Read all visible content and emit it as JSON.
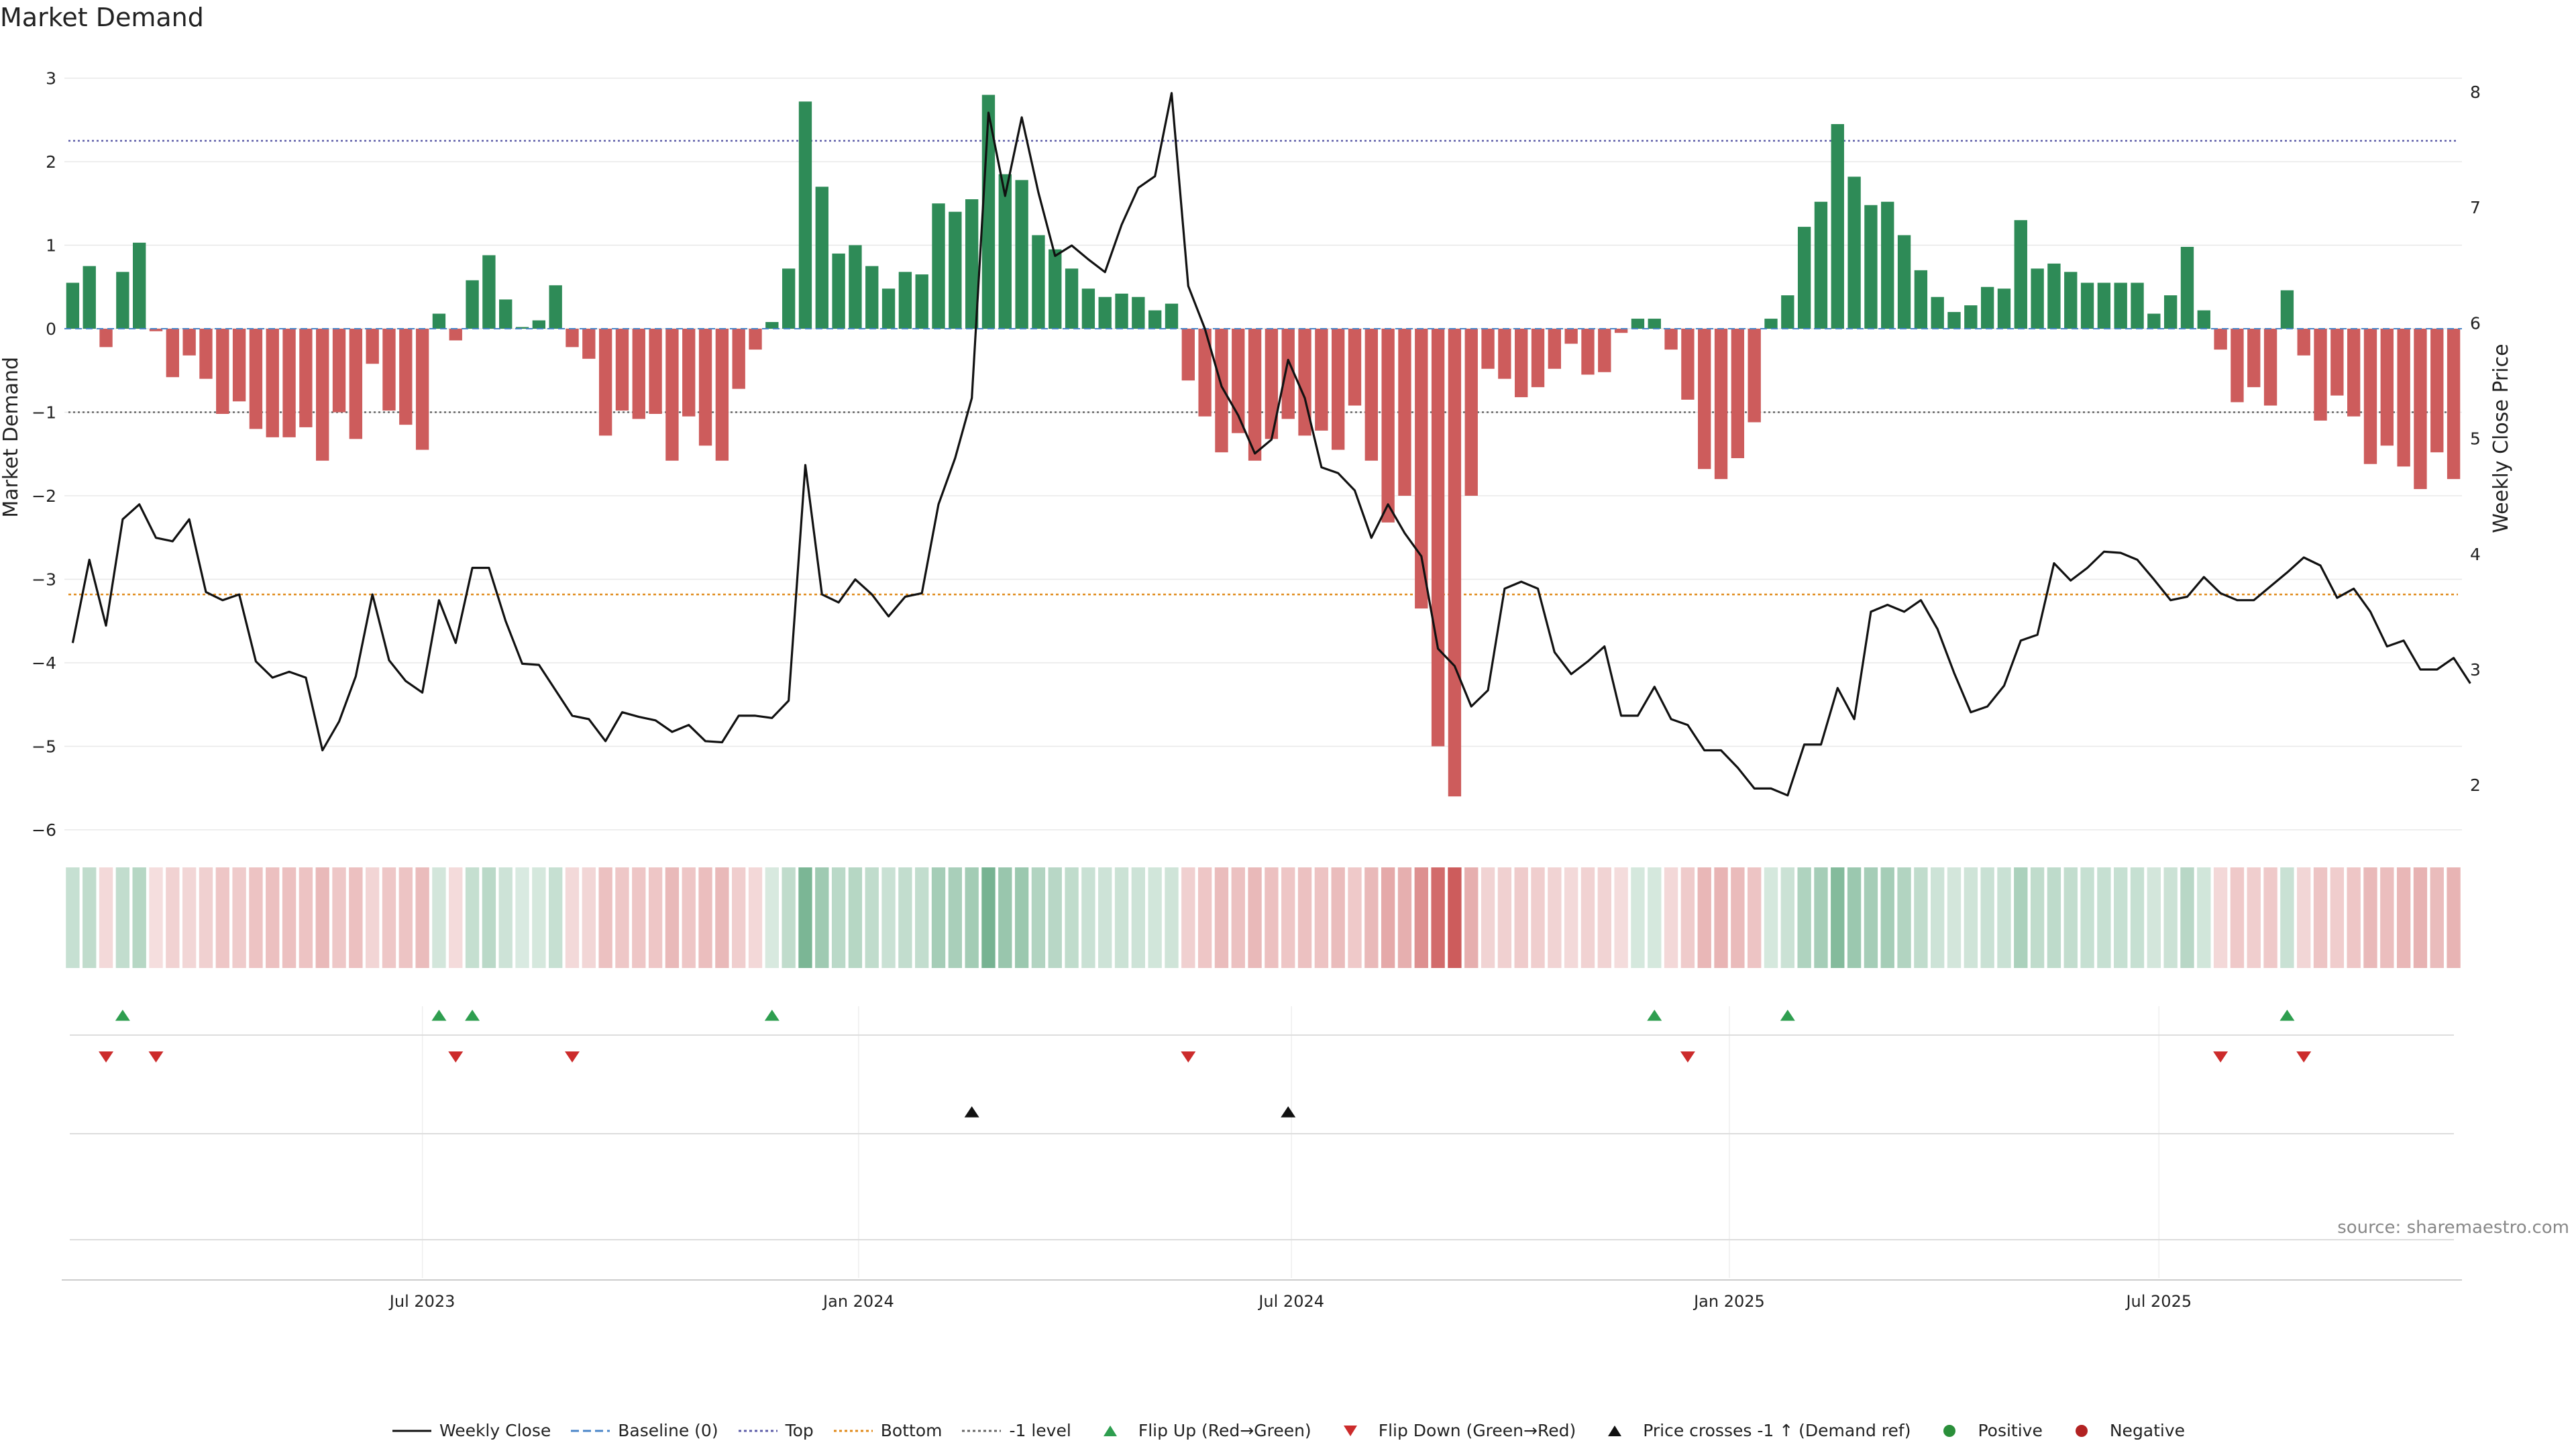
{
  "title": "Market Demand",
  "source": "source: sharemaestro.com",
  "chart_data": {
    "type": "bar",
    "title": "Market Demand",
    "ylabel": "Market Demand",
    "y2label": "Weekly Close Price",
    "ylim": [
      -6.5,
      3.0
    ],
    "y2lim": [
      1.5,
      8.1
    ],
    "yticks": [
      3,
      2,
      1,
      0,
      -1,
      -2,
      -3,
      -4,
      -5,
      -6
    ],
    "y2ticks": [
      8,
      7,
      6,
      5,
      4,
      3,
      2
    ],
    "yticks_text": [
      "3",
      "2",
      "1",
      "0",
      "−1",
      "−2",
      "−3",
      "−4",
      "−5",
      "−6"
    ],
    "xticks": [
      {
        "label": "Jul 2023",
        "week": 21.5
      },
      {
        "label": "Jan 2024",
        "week": 47.7
      },
      {
        "label": "Jul 2024",
        "week": 73.7
      },
      {
        "label": "Jan 2025",
        "week": 100.0
      },
      {
        "label": "Jul 2025",
        "week": 125.8
      }
    ],
    "reference_lines": [
      {
        "name": "Top",
        "axis": "left",
        "value": 2.25,
        "color": "#5c5ca8",
        "dash": "3,4"
      },
      {
        "name": "Bottom",
        "axis": "right",
        "value": 3.65,
        "color": "#e08a1a",
        "dash": "4,4"
      },
      {
        "name": "-1 level",
        "axis": "left",
        "value": -1.0,
        "color": "#666666",
        "dash": "3,4"
      }
    ],
    "series": [
      {
        "name": "Market Demand",
        "axis": "left",
        "values": [
          0.55,
          0.75,
          -0.22,
          0.68,
          1.03,
          -0.03,
          -0.58,
          -0.32,
          -0.6,
          -1.02,
          -0.87,
          -1.2,
          -1.3,
          -1.3,
          -1.18,
          -1.58,
          -1.0,
          -1.32,
          -0.42,
          -0.98,
          -1.15,
          -1.45,
          0.18,
          -0.14,
          0.58,
          0.88,
          0.35,
          0.02,
          0.1,
          0.52,
          -0.22,
          -0.36,
          -1.28,
          -0.98,
          -1.08,
          -1.02,
          -1.58,
          -1.05,
          -1.4,
          -1.58,
          -0.72,
          -0.25,
          0.08,
          0.72,
          2.72,
          1.7,
          0.9,
          1.0,
          0.75,
          0.48,
          0.68,
          0.65,
          1.5,
          1.4,
          1.55,
          2.8,
          1.85,
          1.78,
          1.12,
          0.95,
          0.72,
          0.48,
          0.38,
          0.42,
          0.38,
          0.22,
          0.3,
          -0.62,
          -1.05,
          -1.48,
          -1.25,
          -1.58,
          -1.32,
          -1.08,
          -1.28,
          -1.22,
          -1.45,
          -0.92,
          -1.58,
          -2.32,
          -2.0,
          -3.35,
          -5.0,
          -5.6,
          -2.0,
          -0.48,
          -0.6,
          -0.82,
          -0.7,
          -0.48,
          -0.18,
          -0.55,
          -0.52,
          -0.05,
          0.12,
          0.12,
          -0.25,
          -0.85,
          -1.68,
          -1.8,
          -1.55,
          -1.12,
          0.12,
          0.4,
          1.22,
          1.52,
          2.45,
          1.82,
          1.48,
          1.52,
          1.12,
          0.7,
          0.38,
          0.2,
          0.28,
          0.5,
          0.48,
          1.3,
          0.72,
          0.78,
          0.68,
          0.55,
          0.55,
          0.55,
          0.55,
          0.18,
          0.4,
          0.98,
          0.22,
          -0.25,
          -0.88,
          -0.7,
          -0.92,
          0.46,
          -0.32,
          -1.1,
          -0.8,
          -1.05,
          -1.62,
          -1.4,
          -1.65,
          -1.92,
          -1.48,
          -1.8
        ]
      },
      {
        "name": "Weekly Close",
        "axis": "right",
        "values": [
          3.23,
          3.95,
          3.38,
          4.3,
          4.43,
          4.14,
          4.11,
          4.3,
          3.67,
          3.6,
          3.65,
          3.07,
          2.93,
          2.98,
          2.93,
          2.3,
          2.55,
          2.94,
          3.65,
          3.08,
          2.9,
          2.8,
          3.6,
          3.23,
          3.88,
          3.88,
          3.42,
          3.05,
          3.04,
          2.82,
          2.6,
          2.57,
          2.38,
          2.63,
          2.59,
          2.56,
          2.46,
          2.52,
          2.38,
          2.37,
          2.6,
          2.6,
          2.58,
          2.73,
          4.77,
          3.65,
          3.58,
          3.78,
          3.65,
          3.46,
          3.63,
          3.66,
          4.43,
          4.83,
          5.35,
          7.82,
          7.1,
          7.78,
          7.13,
          6.58,
          6.67,
          6.55,
          6.44,
          6.85,
          7.17,
          7.27,
          7.99,
          6.32,
          5.95,
          5.45,
          5.2,
          4.87,
          4.99,
          5.68,
          5.35,
          4.75,
          4.7,
          4.55,
          4.14,
          4.43,
          4.18,
          3.98,
          3.18,
          3.03,
          2.68,
          2.82,
          3.7,
          3.76,
          3.7,
          3.15,
          2.96,
          3.07,
          3.2,
          2.6,
          2.6,
          2.85,
          2.57,
          2.52,
          2.3,
          2.3,
          2.15,
          1.97,
          1.97,
          1.91,
          2.35,
          2.35,
          2.84,
          2.57,
          3.5,
          3.56,
          3.5,
          3.6,
          3.35,
          2.97,
          2.63,
          2.68,
          2.86,
          3.25,
          3.3,
          3.92,
          3.77,
          3.88,
          4.02,
          4.01,
          3.95,
          3.78,
          3.6,
          3.63,
          3.8,
          3.66,
          3.6,
          3.6,
          3.72,
          3.84,
          3.97,
          3.9,
          3.62,
          3.7,
          3.5,
          3.2,
          3.25,
          3.0,
          3.0,
          3.1,
          2.88
        ]
      }
    ],
    "flip_up_weeks": [
      3,
      22,
      24,
      42,
      95,
      103,
      133
    ],
    "flip_down_weeks": [
      2,
      5,
      23,
      30,
      67,
      97,
      129,
      134
    ],
    "price_cross_weeks": [
      54,
      73
    ],
    "legend": [
      {
        "label": "Weekly Close",
        "kind": "line",
        "color": "#111111"
      },
      {
        "label": "Baseline (0)",
        "kind": "dash",
        "color": "#4a86c8"
      },
      {
        "label": "Top",
        "kind": "dot",
        "color": "#5c5ca8"
      },
      {
        "label": "Bottom",
        "kind": "dot",
        "color": "#e08a1a"
      },
      {
        "label": "-1 level",
        "kind": "dot",
        "color": "#666666"
      },
      {
        "label": "Flip Up (Red→Green)",
        "kind": "tri-up",
        "color": "#2e9e4f"
      },
      {
        "label": "Flip Down (Green→Red)",
        "kind": "tri-down",
        "color": "#cc2b2b"
      },
      {
        "label": "Price crosses -1 ↑ (Demand ref)",
        "kind": "tri-up",
        "color": "#111111"
      },
      {
        "label": "Positive",
        "kind": "dot-marker",
        "color": "#2a8f3a"
      },
      {
        "label": "Negative",
        "kind": "dot-marker",
        "color": "#b22222"
      }
    ],
    "colors": {
      "positive": "#2e8b57",
      "negative": "#cd5c5c",
      "line": "#111111",
      "grid": "#e8e8e8"
    }
  }
}
